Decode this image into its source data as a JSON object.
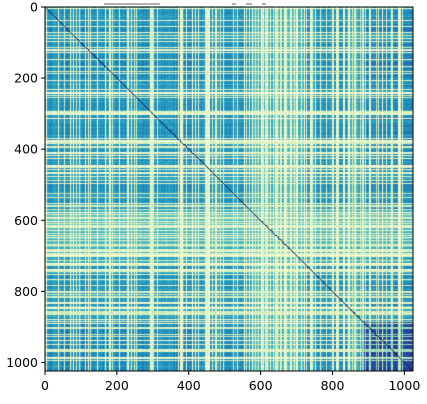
{
  "chart_data": {
    "type": "heatmap",
    "title": "",
    "xlabel": "",
    "ylabel": "",
    "xlim": [
      0,
      1024
    ],
    "ylim": [
      1024,
      0
    ],
    "x_ticks": [
      0,
      200,
      400,
      600,
      800,
      1000
    ],
    "y_ticks": [
      0,
      200,
      400,
      600,
      800,
      1000
    ],
    "x_tick_labels": [
      "0",
      "200",
      "400",
      "600",
      "800",
      "1000"
    ],
    "y_tick_labels": [
      "0",
      "200",
      "400",
      "600",
      "800",
      "1000"
    ],
    "matrix_size": 1024,
    "colormap": "YlGnBu",
    "colormap_stops": [
      "#ffffd9",
      "#c7e9b4",
      "#7fcdbb",
      "#41b6c4",
      "#1d91c0",
      "#225ea8",
      "#253494"
    ],
    "grid": false,
    "diagonal": "dark-blue",
    "structure": "dense block pattern; bright (pale yellow) rows/columns concentrated around 570-700 and 860; darkest blocks in the bottom-right corner 880-1024"
  }
}
